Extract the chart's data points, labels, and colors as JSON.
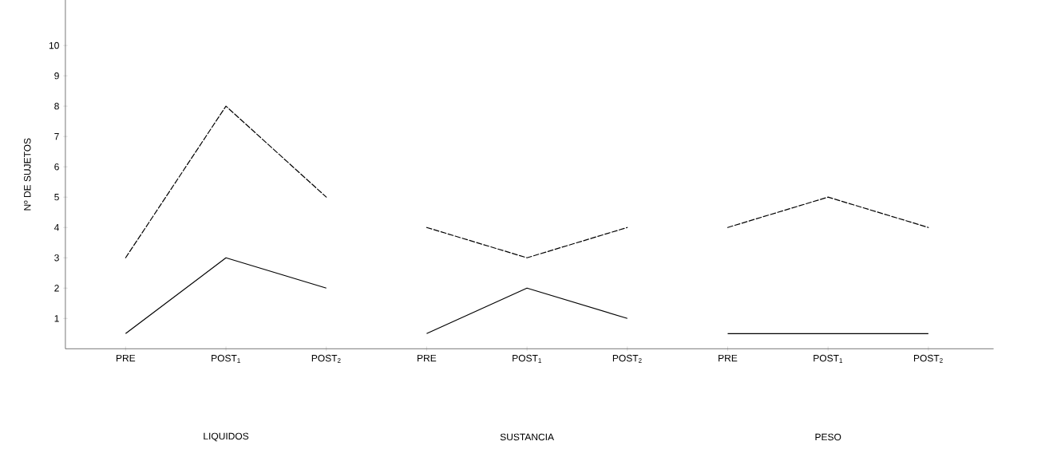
{
  "chart_data": {
    "type": "line",
    "ylabel": "Nº DE SUJETOS",
    "categories": [
      "PRE",
      "POST$_{1}$",
      "POST$_{2}$",
      "PRE",
      "POST$_{1}$",
      "POST$_{2}$",
      "PRE",
      "POST$_{1}$",
      "POST$_{2}$"
    ],
    "series": [
      {
        "color": "#000000",
        "line_style": "dashed",
        "values": [
          3,
          8,
          5,
          null,
          null,
          null,
          null,
          null,
          null
        ]
      },
      {
        "color": "#000000",
        "line_style": "solid",
        "values": [
          0.5,
          3,
          2,
          null,
          null,
          null,
          null,
          null,
          null
        ]
      },
      {
        "color": "#000000",
        "line_style": "dashed",
        "values": [
          null,
          null,
          null,
          4,
          3,
          4,
          null,
          null,
          null
        ]
      },
      {
        "color": "#000000",
        "line_style": "solid",
        "values": [
          null,
          null,
          null,
          0.5,
          2,
          1,
          null,
          null,
          null
        ]
      },
      {
        "color": "#000000",
        "line_style": "dashed",
        "values": [
          null,
          null,
          null,
          null,
          null,
          null,
          4,
          5,
          4
        ]
      },
      {
        "color": "#000000",
        "line_style": "solid",
        "values": [
          null,
          null,
          null,
          null,
          null,
          null,
          0.5,
          0.5,
          0.5
        ]
      }
    ],
    "annotations": [
      "LIQUIDOS",
      "SUSTANCIA",
      "PESO"
    ],
    "ylim": [
      0,
      11.5
    ],
    "yticks": [
      1,
      2,
      3,
      4,
      5,
      6,
      7,
      8,
      9,
      10
    ],
    "grid": false,
    "marker": "none"
  }
}
